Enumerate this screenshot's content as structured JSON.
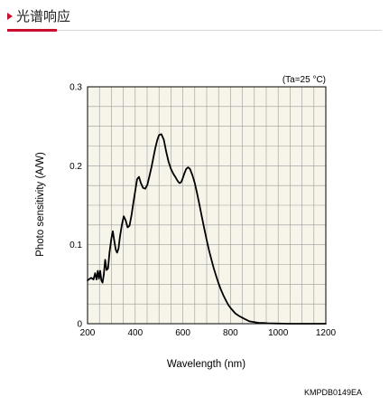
{
  "header": {
    "title": "光谱响应"
  },
  "colors": {
    "accent": "#c8102e",
    "plot_background": "#f7f4ea",
    "grid": "#9a9a9a",
    "curve": "#000000"
  },
  "chart_data": {
    "type": "line",
    "xlabel": "Wavelength (nm)",
    "ylabel": "Photo sensitivity (A/W)",
    "annotation": "(Ta=25 °C)",
    "code": "KMPDB0149EA",
    "xlim": [
      200,
      1200
    ],
    "ylim": [
      0,
      0.3
    ],
    "x_ticks": [
      200,
      400,
      600,
      800,
      1000,
      1200
    ],
    "x_tick_labels": [
      "200",
      "400",
      "600",
      "800",
      "1000",
      "1200"
    ],
    "y_ticks": [
      0,
      0.1,
      0.2,
      0.3
    ],
    "y_tick_labels": [
      "0",
      "0.1",
      "0.2",
      "0.3"
    ],
    "grid": true,
    "series": [
      {
        "x": [
          200,
          215,
          225,
          232,
          238,
          243,
          248,
          253,
          258,
          263,
          268,
          274,
          280,
          286,
          292,
          300,
          306,
          312,
          318,
          324,
          330,
          336,
          344,
          352,
          360,
          368,
          376,
          385,
          393,
          401,
          408,
          416,
          424,
          433,
          442,
          451,
          460,
          468,
          476,
          484,
          492,
          500,
          510,
          520,
          530,
          540,
          550,
          560,
          568,
          574,
          580,
          586,
          592,
          598,
          606,
          614,
          622,
          630,
          640,
          650,
          660,
          670,
          680,
          690,
          700,
          710,
          720,
          730,
          740,
          750,
          760,
          770,
          780,
          790,
          800,
          820,
          840,
          860,
          880,
          900,
          920,
          940,
          960,
          980,
          1000,
          1020,
          1040,
          1060,
          1080,
          1100,
          1120,
          1140,
          1160,
          1180,
          1200
        ],
        "y": [
          0.055,
          0.058,
          0.056,
          0.064,
          0.056,
          0.067,
          0.057,
          0.067,
          0.055,
          0.052,
          0.062,
          0.081,
          0.068,
          0.07,
          0.09,
          0.108,
          0.117,
          0.105,
          0.094,
          0.09,
          0.095,
          0.11,
          0.125,
          0.136,
          0.131,
          0.122,
          0.124,
          0.138,
          0.155,
          0.17,
          0.183,
          0.186,
          0.178,
          0.172,
          0.171,
          0.176,
          0.187,
          0.198,
          0.21,
          0.222,
          0.232,
          0.239,
          0.24,
          0.233,
          0.218,
          0.205,
          0.196,
          0.19,
          0.186,
          0.183,
          0.18,
          0.178,
          0.179,
          0.183,
          0.19,
          0.196,
          0.198,
          0.196,
          0.188,
          0.178,
          0.165,
          0.15,
          0.135,
          0.12,
          0.106,
          0.093,
          0.081,
          0.07,
          0.06,
          0.051,
          0.043,
          0.036,
          0.03,
          0.024,
          0.02,
          0.013,
          0.009,
          0.006,
          0.003,
          0.002,
          0.001,
          0.001,
          0.0005,
          0.0003,
          0.0002,
          0.0001,
          0.0,
          0.0,
          0.0,
          0.0,
          0.0,
          0.0,
          0.0,
          0.0,
          0.0
        ]
      }
    ]
  }
}
